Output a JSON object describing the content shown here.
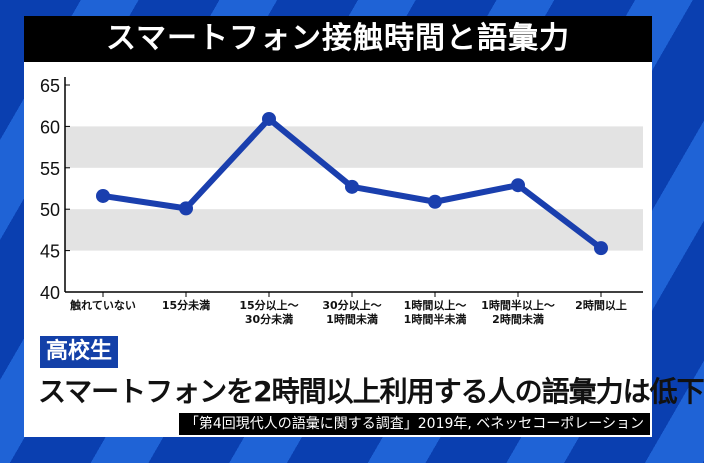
{
  "header": {
    "title": "スマートフォン接触時間と語彙力"
  },
  "badge": "高校生",
  "headline": "スマートフォンを2時間以上利用する人の語彙力は低下",
  "source": "「第4回現代人の語彙に関する調査」2019年, ベネッセコーポレーション",
  "colors": {
    "line": "#1a3fae",
    "band": "#e3e3e3",
    "title_bg": "#000000",
    "badge_bg": "#1340a8"
  },
  "chart_data": {
    "type": "line",
    "categories": [
      "触れていない",
      "15分未満",
      "15分以上～\n30分未満",
      "30分以上～\n1時間未満",
      "1時間以上～\n1時間半未満",
      "1時間半以上～\n2時間未満",
      "2時間以上"
    ],
    "series": [
      {
        "values": [
          51.6,
          50.1,
          60.9,
          52.7,
          50.9,
          52.9,
          45.3
        ]
      }
    ],
    "ylim": [
      40,
      65
    ],
    "yticks": [
      40,
      45,
      50,
      55,
      60,
      65
    ],
    "grid": "alternating bands",
    "legend": "none"
  }
}
